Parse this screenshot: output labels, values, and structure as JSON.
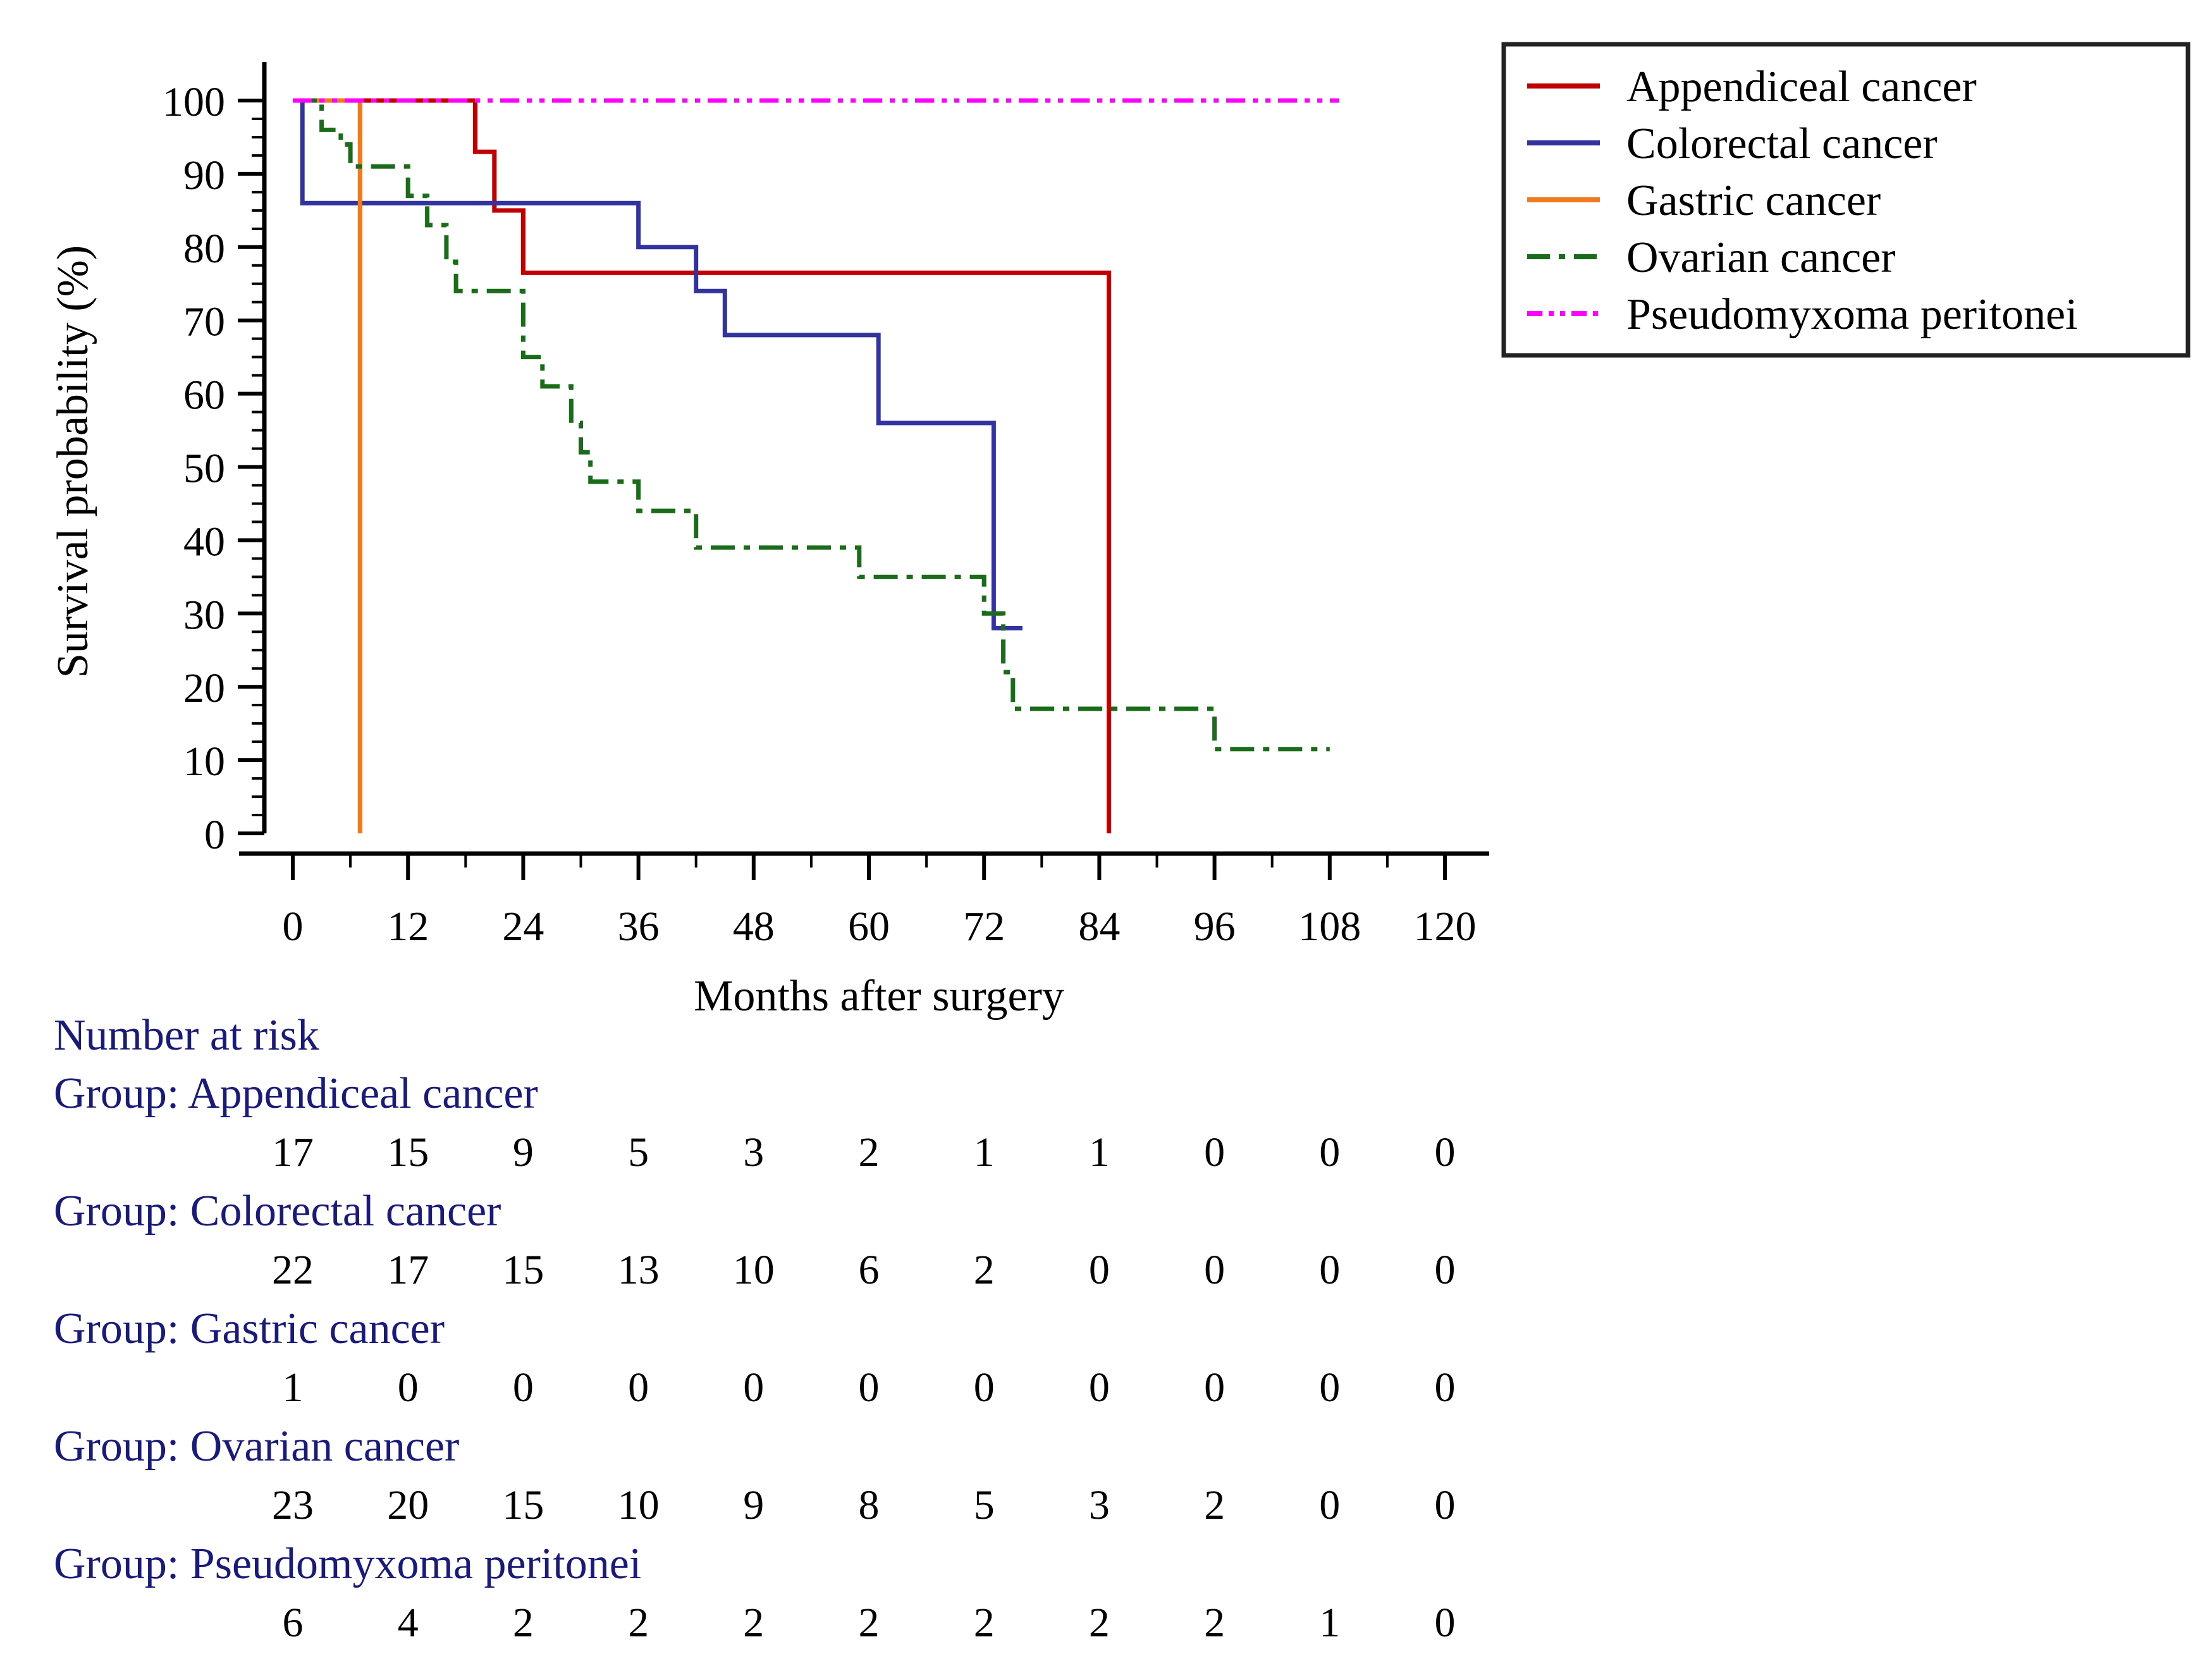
{
  "chart_data": {
    "type": "line",
    "subtype": "kaplan-meier",
    "xlabel": "Months after surgery",
    "ylabel": "Survival probability (%)",
    "xlim": [
      0,
      120
    ],
    "ylim": [
      0,
      100
    ],
    "xticks": [
      0,
      12,
      24,
      36,
      48,
      60,
      72,
      84,
      96,
      108,
      120
    ],
    "yticks": [
      0,
      10,
      20,
      30,
      40,
      50,
      60,
      70,
      80,
      90,
      100
    ],
    "grid": false,
    "legend_position": "top-right",
    "series": [
      {
        "name": "Appendiceal cancer",
        "color": "#c00000",
        "dash": "solid",
        "steps": [
          [
            0,
            100
          ],
          [
            19,
            100
          ],
          [
            19,
            93
          ],
          [
            21,
            93
          ],
          [
            21,
            85
          ],
          [
            24,
            85
          ],
          [
            24,
            76.5
          ],
          [
            85,
            76.5
          ],
          [
            85,
            0
          ]
        ]
      },
      {
        "name": "Colorectal cancer",
        "color": "#3333a0",
        "dash": "solid",
        "steps": [
          [
            1,
            100
          ],
          [
            1,
            86
          ],
          [
            36,
            86
          ],
          [
            36,
            80
          ],
          [
            42,
            80
          ],
          [
            42,
            74
          ],
          [
            45,
            74
          ],
          [
            45,
            68
          ],
          [
            61,
            68
          ],
          [
            61,
            56
          ],
          [
            73,
            56
          ],
          [
            73,
            28
          ],
          [
            76,
            28
          ]
        ]
      },
      {
        "name": "Gastric cancer",
        "color": "#f07a20",
        "dash": "solid",
        "steps": [
          [
            0,
            100
          ],
          [
            7,
            100
          ],
          [
            7,
            0
          ]
        ]
      },
      {
        "name": "Ovarian cancer",
        "color": "#1a6b1a",
        "dash": "dashdot",
        "steps": [
          [
            0,
            100
          ],
          [
            3,
            100
          ],
          [
            3,
            96
          ],
          [
            5,
            96
          ],
          [
            5,
            94
          ],
          [
            6,
            94
          ],
          [
            6,
            91
          ],
          [
            12,
            91
          ],
          [
            12,
            87
          ],
          [
            14,
            87
          ],
          [
            14,
            83
          ],
          [
            16,
            83
          ],
          [
            16,
            78
          ],
          [
            17,
            78
          ],
          [
            17,
            74
          ],
          [
            24,
            74
          ],
          [
            24,
            65
          ],
          [
            26,
            65
          ],
          [
            26,
            61
          ],
          [
            29,
            61
          ],
          [
            29,
            56
          ],
          [
            30,
            56
          ],
          [
            30,
            52
          ],
          [
            31,
            52
          ],
          [
            31,
            48
          ],
          [
            36,
            48
          ],
          [
            36,
            44
          ],
          [
            42,
            44
          ],
          [
            42,
            39
          ],
          [
            59,
            39
          ],
          [
            59,
            35
          ],
          [
            72,
            35
          ],
          [
            72,
            30
          ],
          [
            74,
            30
          ],
          [
            74,
            22
          ],
          [
            75,
            22
          ],
          [
            75,
            17
          ],
          [
            96,
            17
          ],
          [
            96,
            11.5
          ],
          [
            108,
            11.5
          ]
        ]
      },
      {
        "name": "Pseudomyxoma peritonei",
        "color": "#ff00ff",
        "dash": "dashdotdot",
        "steps": [
          [
            0,
            100
          ],
          [
            109,
            100
          ]
        ]
      }
    ]
  },
  "risk_table": {
    "title": "Number at risk",
    "time_points": [
      0,
      12,
      24,
      36,
      48,
      60,
      72,
      84,
      96,
      108,
      120
    ],
    "groups": [
      {
        "label": "Group: Appendiceal cancer",
        "values": [
          "17",
          "15",
          "9",
          "5",
          "3",
          "2",
          "1",
          "1",
          "0",
          "0",
          "0"
        ]
      },
      {
        "label": "Group: Colorectal cancer",
        "values": [
          "22",
          "17",
          "15",
          "13",
          "10",
          "6",
          "2",
          "0",
          "0",
          "0",
          "0"
        ]
      },
      {
        "label": "Group: Gastric cancer",
        "values": [
          "1",
          "0",
          "0",
          "0",
          "0",
          "0",
          "0",
          "0",
          "0",
          "0",
          "0"
        ]
      },
      {
        "label": "Group: Ovarian cancer",
        "values": [
          "23",
          "20",
          "15",
          "10",
          "9",
          "8",
          "5",
          "3",
          "2",
          "0",
          "0"
        ]
      },
      {
        "label": "Group: Pseudomyxoma peritonei",
        "values": [
          "6",
          "4",
          "2",
          "2",
          "2",
          "2",
          "2",
          "2",
          "2",
          "1",
          "0"
        ]
      }
    ]
  },
  "colors": {
    "axis": "#000000",
    "text": "#000000",
    "risk_table_text": "#1a1a7a"
  }
}
